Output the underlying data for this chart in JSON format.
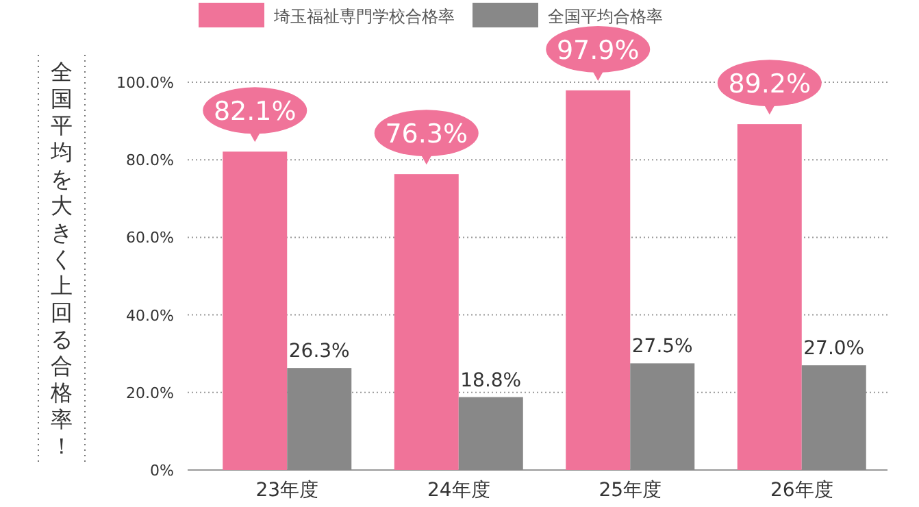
{
  "chart_data": {
    "type": "bar",
    "categories": [
      "23年度",
      "24年度",
      "25年度",
      "26年度"
    ],
    "series": [
      {
        "name": "埼玉福祉専門学校合格率",
        "color": "#f07399",
        "values": [
          82.1,
          76.3,
          97.9,
          89.2
        ],
        "value_labels": [
          "82.1%",
          "76.3%",
          "97.9%",
          "89.2%"
        ]
      },
      {
        "name": "全国平均合格率",
        "color": "#888888",
        "values": [
          26.3,
          18.8,
          27.5,
          27.0
        ],
        "value_labels": [
          "26.3%",
          "18.8%",
          "27.5%",
          "27.0%"
        ]
      }
    ],
    "ylim": [
      0,
      100
    ],
    "yticks": [
      {
        "value": 0,
        "label": "0%"
      },
      {
        "value": 20,
        "label": "20.0%"
      },
      {
        "value": 40,
        "label": "40.0%"
      },
      {
        "value": 60,
        "label": "60.0%"
      },
      {
        "value": 80,
        "label": "80.0%"
      },
      {
        "value": 100,
        "label": "100.0%"
      }
    ],
    "grid": "y",
    "legend": "top",
    "annotations": [
      "全国平均を大きく上回る合格率！"
    ]
  }
}
